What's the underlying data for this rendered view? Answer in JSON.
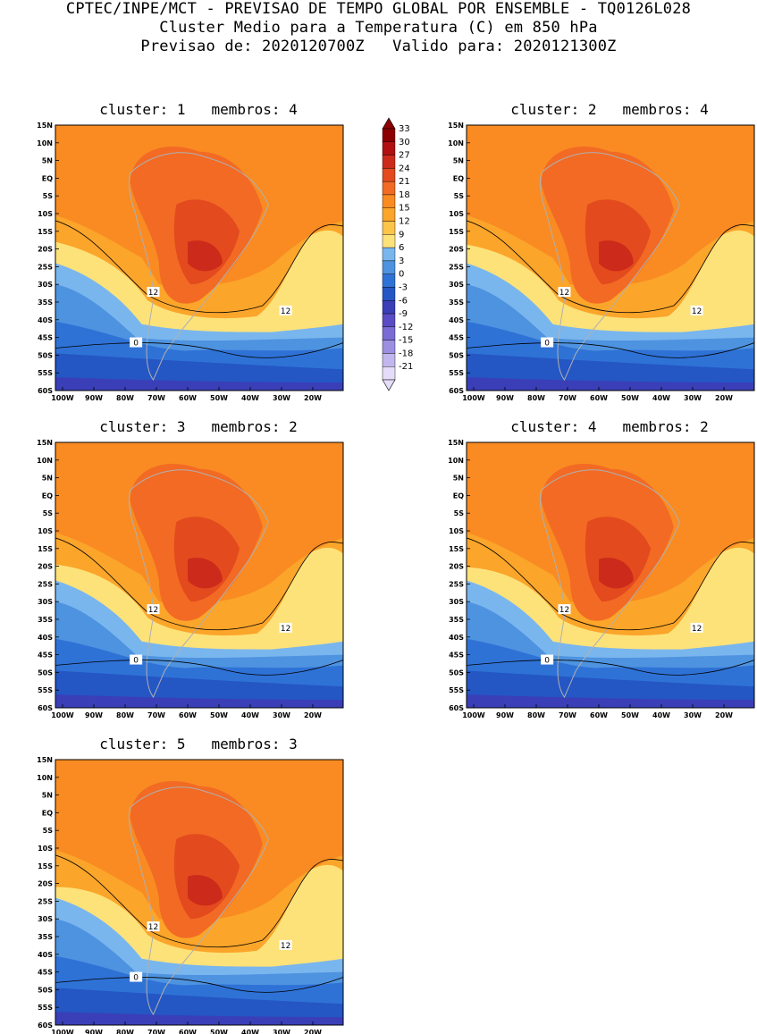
{
  "header": {
    "line1": "CPTEC/INPE/MCT - PREVISAO DE TEMPO GLOBAL POR ENSEMBLE - TQ0126L028",
    "line2": "Cluster Medio para a Temperatura (C) em 850 hPa",
    "line3": "Previsao de: 2020120700Z   Valido para: 2020121300Z"
  },
  "axes": {
    "lat_labels": [
      "15N",
      "10N",
      "5N",
      "EQ",
      "5S",
      "10S",
      "15S",
      "20S",
      "25S",
      "30S",
      "35S",
      "40S",
      "45S",
      "50S",
      "55S",
      "60S"
    ],
    "lon_labels": [
      "100W",
      "90W",
      "80W",
      "70W",
      "60W",
      "50W",
      "40W",
      "30W",
      "20W"
    ]
  },
  "colorbar": {
    "labels": [
      "33",
      "30",
      "27",
      "24",
      "21",
      "18",
      "15",
      "12",
      "9",
      "6",
      "3",
      "0",
      "-3",
      "-6",
      "-9",
      "-12",
      "-15",
      "-18",
      "-21"
    ],
    "colors": [
      "#8b0000",
      "#b01010",
      "#cc2a1a",
      "#e34a1e",
      "#f26a24",
      "#f98b22",
      "#fba52a",
      "#fdc44a",
      "#fde27a",
      "#7ab6ee",
      "#4e93e0",
      "#2f72d6",
      "#2456c4",
      "#3a3fb8",
      "#5a4cc4",
      "#7a6cd4",
      "#9c8ee0",
      "#c2b6ee",
      "#e4dcf8"
    ]
  },
  "panels": [
    {
      "title": "cluster: 1   membros: 4",
      "contour12": "12",
      "contour0": "0"
    },
    {
      "title": "cluster: 2   membros: 4",
      "contour12": "12",
      "contour0": "0"
    },
    {
      "title": "cluster: 3   membros: 2",
      "contour12": "12",
      "contour0": "0"
    },
    {
      "title": "cluster: 4   membros: 2",
      "contour12": "12",
      "contour0": "0"
    },
    {
      "title": "cluster: 5   membros: 3",
      "contour12": "12",
      "contour0": "0"
    }
  ]
}
